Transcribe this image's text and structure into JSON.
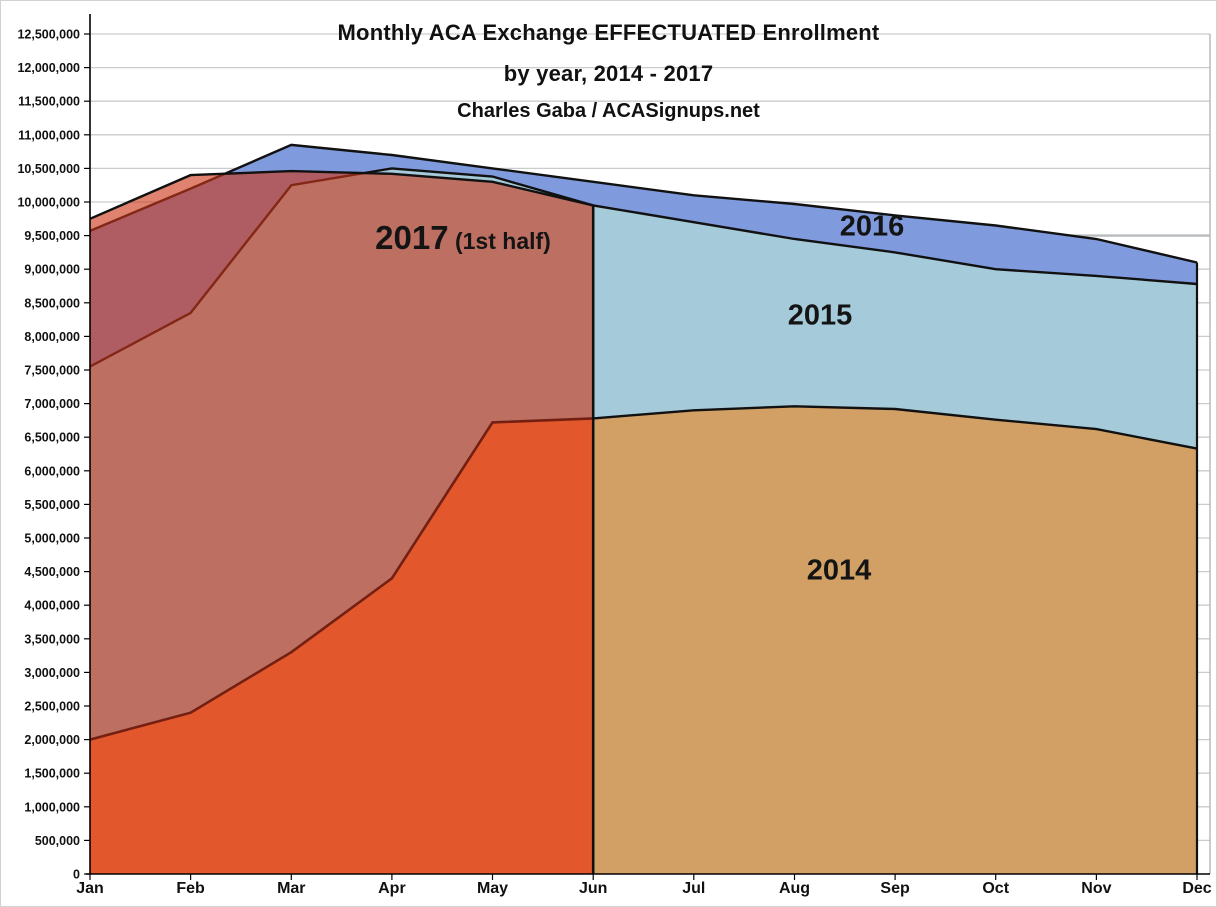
{
  "title": {
    "line1": "Monthly ACA Exchange EFFECTUATED Enrollment",
    "line2": "by year, 2014 - 2017",
    "subtitle": "Charles Gaba / ACASignups.net"
  },
  "chart_data": {
    "type": "area",
    "title": "Monthly ACA Exchange EFFECTUATED Enrollment by year, 2014 - 2017",
    "xlabel": "",
    "ylabel": "",
    "x_categories": [
      "Jan",
      "Feb",
      "Mar",
      "Apr",
      "May",
      "Jun",
      "Jul",
      "Aug",
      "Sep",
      "Oct",
      "Nov",
      "Dec"
    ],
    "y_axis": {
      "min": 0,
      "max": 12500000,
      "step": 500000,
      "format": "comma"
    },
    "grid": true,
    "legend_position": "in-plot-labels",
    "series": [
      {
        "name": "2016",
        "type": "area",
        "color": "#809bdd",
        "edge_color": "#111111",
        "values": [
          9570000,
          10200000,
          10850000,
          10700000,
          10500000,
          10300000,
          10100000,
          9970000,
          9800000,
          9650000,
          9450000,
          9100000
        ]
      },
      {
        "name": "2015",
        "type": "area",
        "color": "#a5cad9",
        "edge_color": "#111111",
        "values": [
          7550000,
          8350000,
          10250000,
          10500000,
          10380000,
          9950000,
          9700000,
          9450000,
          9250000,
          9000000,
          8900000,
          8780000
        ]
      },
      {
        "name": "2014",
        "type": "area",
        "color_first_half": "#e2572b",
        "color_second_half": "#d2a065",
        "edge_color_first_half": "#731f12",
        "edge_color_second_half": "#111111",
        "values": [
          2000000,
          2400000,
          3300000,
          4400000,
          6720000,
          6780000,
          6900000,
          6960000,
          6920000,
          6760000,
          6620000,
          6330000
        ]
      },
      {
        "name": "2017 (1st half)",
        "type": "area",
        "color": "rgba(203,55,25,0.62)",
        "edge_color": "#111111",
        "months_covered": [
          "Jan",
          "Feb",
          "Mar",
          "Apr",
          "May",
          "Jun"
        ],
        "values": [
          9750000,
          10400000,
          10460000,
          10420000,
          10300000,
          9950000
        ]
      }
    ],
    "area_labels": [
      {
        "text": "2017",
        "suffix": " (1st half)"
      },
      {
        "text": "2016",
        "suffix": ""
      },
      {
        "text": "2015",
        "suffix": ""
      },
      {
        "text": "2014",
        "suffix": ""
      }
    ]
  }
}
